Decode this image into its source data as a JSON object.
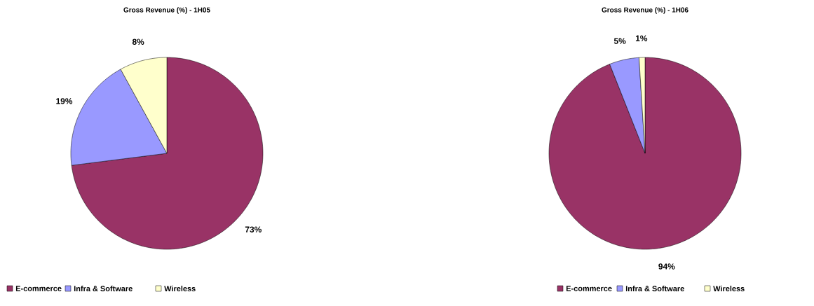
{
  "chart_data": [
    {
      "type": "pie",
      "title": "Gross Revenue (%) - 1H05",
      "categories": [
        "E-commerce",
        "Infra & Software",
        "Wireless"
      ],
      "values": [
        73,
        19,
        8
      ],
      "colors": [
        "#993366",
        "#9999ff",
        "#ffffcc"
      ],
      "value_labels": [
        "73%",
        "19%",
        "8%"
      ],
      "legend": "bottom"
    },
    {
      "type": "pie",
      "title": "Gross Revenue (%) - 1H06",
      "categories": [
        "E-commerce",
        "Infra & Software",
        "Wireless"
      ],
      "values": [
        94,
        5,
        1
      ],
      "colors": [
        "#993366",
        "#9999ff",
        "#ffffcc"
      ],
      "value_labels": [
        "94%",
        "5%",
        "1%"
      ],
      "legend": "bottom"
    }
  ]
}
